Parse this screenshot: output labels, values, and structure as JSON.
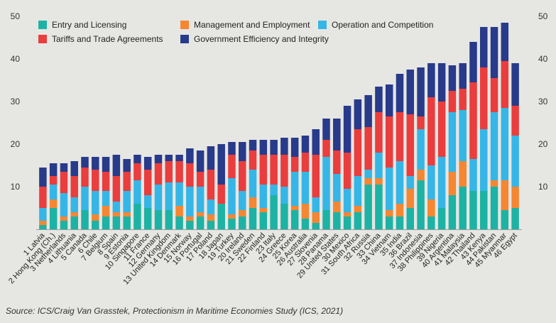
{
  "chart_data": {
    "type": "bar",
    "stacked": true,
    "title": "",
    "xlabel": "",
    "ylabel": "",
    "ylim": [
      0,
      50
    ],
    "yticks": [
      10,
      20,
      30,
      40,
      50
    ],
    "legend_position": "top-left",
    "categories": [
      "1 Latvia",
      "2 Hong Kong (Ch.)",
      "3 Netherlands",
      "4 Lithuania",
      "5 Canada",
      "6 Chile",
      "7 Belgium",
      "8 Spain",
      "9 Estonia",
      "10 Singapore",
      "11 France",
      "12 Germany",
      "13 United Kingdom",
      "14 Denmark",
      "15 Norway",
      "16 Portugal",
      "17 Poland",
      "18 Japan",
      "19 Turkey",
      "20 Ireland",
      "21 Sweden",
      "22 Finland",
      "23 Italy",
      "24 Greece",
      "25 Korea",
      "26 Australia",
      "27 Slovenia",
      "28 Panama",
      "29 United States",
      "30 Mexico",
      "31 South Africa",
      "32 Russia",
      "33 China",
      "34 Vietnam",
      "35 India",
      "36 Brazil",
      "37 Indonesia",
      "38 Philippines",
      "39 Nigeria",
      "40 Argentina",
      "41 Malaysia",
      "42 Thailand",
      "43 Kenya",
      "44 Pakistan",
      "45 Myanmar",
      "46 Egypt"
    ],
    "series": [
      {
        "name": "Entry and Licensing",
        "color": "#1cb3a4",
        "values": [
          1,
          5,
          2,
          3,
          4.5,
          2,
          3,
          3,
          3,
          6,
          5,
          4.5,
          4.5,
          3,
          2,
          3,
          2,
          6,
          2.5,
          3,
          5,
          4,
          8,
          6,
          4.5,
          2.5,
          1.5,
          4.5,
          4,
          3,
          4,
          10.5,
          10.5,
          3,
          3,
          5,
          11.5,
          3,
          5,
          8,
          10,
          9,
          9,
          10,
          4.5,
          5
        ]
      },
      {
        "name": "Management and Employment",
        "color": "#f58632",
        "values": [
          1,
          2,
          1,
          1,
          0,
          1.5,
          2.5,
          1,
          1,
          0,
          0,
          0,
          0,
          2.5,
          1,
          1,
          1.5,
          0,
          1,
          1.5,
          2.5,
          1,
          0,
          0,
          1,
          3.5,
          2.5,
          0,
          2.5,
          1,
          1.5,
          1.5,
          1.5,
          1.5,
          3,
          4.5,
          2.5,
          4,
          0,
          5.5,
          6,
          0,
          0,
          1.5,
          7,
          5
        ]
      },
      {
        "name": "Operation and Competition",
        "color": "#35b6e6",
        "values": [
          3,
          3.5,
          5.5,
          3.5,
          5.5,
          5.5,
          3.5,
          2.5,
          5,
          5.5,
          3,
          6,
          6.5,
          5.5,
          7,
          6,
          3.5,
          0,
          8.5,
          4.5,
          6.5,
          5.5,
          2.5,
          4,
          8,
          7.5,
          3.5,
          12.5,
          6.5,
          5.5,
          7,
          2,
          6,
          10,
          10,
          3,
          9.5,
          8,
          12,
          14,
          12,
          7.5,
          14.5,
          16,
          17,
          12
        ]
      },
      {
        "name": "Tariffs and Trade Agreements",
        "color": "#ea3d3d",
        "values": [
          5,
          2,
          5,
          5,
          4.5,
          5,
          4.5,
          6,
          4.5,
          4,
          6,
          5,
          5,
          5,
          5.5,
          3.5,
          7,
          4.5,
          5.5,
          7,
          4.5,
          7,
          7,
          7.5,
          3.5,
          4.5,
          10,
          4,
          5.5,
          8.5,
          11,
          10,
          9.5,
          12,
          11.5,
          14.5,
          3,
          16,
          13,
          5,
          5,
          18,
          14.5,
          8,
          11,
          7
        ]
      },
      {
        "name": "Government Efficiency and Integrity",
        "color": "#283a8a",
        "values": [
          4.5,
          3,
          2,
          3.5,
          2.5,
          3,
          3.5,
          5,
          3,
          2,
          3,
          2,
          1.5,
          1.5,
          3.5,
          5,
          5.5,
          9.5,
          3,
          4.5,
          2.5,
          3.5,
          3.5,
          4,
          4.5,
          4,
          6,
          5,
          7.5,
          11,
          7,
          7.5,
          6,
          7.5,
          9,
          10.5,
          11.5,
          8,
          9,
          6,
          6,
          9.5,
          9.5,
          12,
          9,
          10
        ]
      }
    ]
  },
  "source": "Source: ICS/Craig Van Grasstek, Protectionism in Maritime Economies Study (ICS, 2021)"
}
